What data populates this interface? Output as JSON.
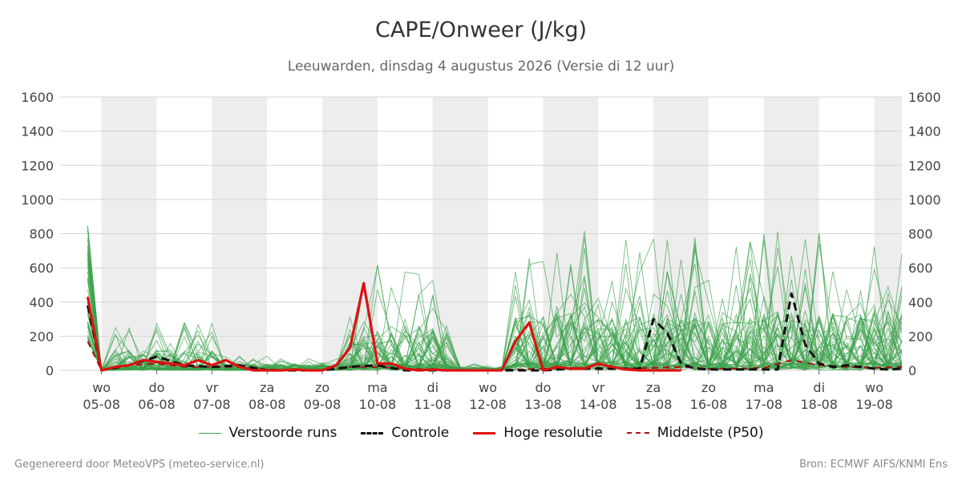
{
  "header": {
    "title": "CAPE/Onweer (J/kg)",
    "subtitle": "Leeuwarden, dinsdag  4 augustus 2026 (Versie di 12 uur)"
  },
  "footer": {
    "left": "Gegenereerd door MeteoVPS (meteo-service.nl)",
    "right": "Bron: ECMWF AIFS/KNMI Ens"
  },
  "legend": [
    {
      "label": "Verstoorde runs",
      "color": "#3aa14a",
      "style": "solid-thin"
    },
    {
      "label": "Controle",
      "color": "#111111",
      "style": "dashed"
    },
    {
      "label": "Hoge resolutie",
      "color": "#dd1111",
      "style": "solid-thick"
    },
    {
      "label": "Middelste (P50)",
      "color": "#aa1111",
      "style": "dashed-thin"
    }
  ],
  "chart_data": {
    "type": "line",
    "title": "CAPE/Onweer (J/kg)",
    "subtitle": "Leeuwarden, dinsdag  4 augustus 2026 (Versie di 12 uur)",
    "ylim": [
      0,
      1600
    ],
    "y_ticks": [
      0,
      200,
      400,
      600,
      800,
      1000,
      1200,
      1400,
      1600
    ],
    "x_range_days": [
      -0.75,
      14.5
    ],
    "x_ticks": [
      {
        "day": "wo",
        "date": "05-08"
      },
      {
        "day": "do",
        "date": "06-08"
      },
      {
        "day": "vr",
        "date": "07-08"
      },
      {
        "day": "za",
        "date": "08-08"
      },
      {
        "day": "zo",
        "date": "09-08"
      },
      {
        "day": "ma",
        "date": "10-08"
      },
      {
        "day": "di",
        "date": "11-08"
      },
      {
        "day": "wo",
        "date": "12-08"
      },
      {
        "day": "do",
        "date": "13-08"
      },
      {
        "day": "vr",
        "date": "14-08"
      },
      {
        "day": "za",
        "date": "15-08"
      },
      {
        "day": "zo",
        "date": "16-08"
      },
      {
        "day": "ma",
        "date": "17-08"
      },
      {
        "day": "di",
        "date": "18-08"
      },
      {
        "day": "wo",
        "date": "19-08"
      }
    ],
    "shaded_bands_days": [
      [
        0,
        1
      ],
      [
        2,
        3
      ],
      [
        4,
        5
      ],
      [
        6,
        7
      ],
      [
        8,
        9
      ],
      [
        10,
        11
      ],
      [
        12,
        13
      ],
      [
        14,
        14.5
      ]
    ],
    "grid": true,
    "legend_position": "bottom",
    "series": [
      {
        "name": "Hoge resolutie",
        "color": "#dd1111",
        "x": [
          -0.25,
          0,
          0.25,
          0.5,
          0.75,
          1,
          1.25,
          1.5,
          1.75,
          2,
          2.25,
          2.5,
          2.75,
          3,
          3.25,
          3.5,
          3.75,
          4,
          4.25,
          4.5,
          4.75,
          5,
          5.25,
          5.5,
          5.75,
          6,
          6.25,
          6.5,
          6.75,
          7,
          7.25,
          7.5,
          7.75,
          8,
          8.25,
          8.5,
          8.75,
          9,
          9.25,
          9.5,
          9.75,
          10,
          10.25,
          10.5
        ],
        "values": [
          430,
          0,
          20,
          30,
          60,
          50,
          40,
          30,
          60,
          30,
          60,
          20,
          0,
          0,
          0,
          5,
          0,
          0,
          30,
          130,
          510,
          40,
          40,
          10,
          0,
          5,
          0,
          0,
          0,
          0,
          0,
          170,
          280,
          0,
          20,
          10,
          10,
          40,
          20,
          5,
          0,
          0,
          0,
          0
        ]
      },
      {
        "name": "Controle",
        "color": "#111111",
        "x": [
          -0.25,
          0,
          0.5,
          1,
          1.5,
          2,
          2.5,
          3,
          3.5,
          4,
          4.5,
          5,
          5.5,
          6,
          6.5,
          7,
          7.5,
          8,
          8.5,
          9,
          9.5,
          9.75,
          10,
          10.25,
          10.5,
          10.75,
          11,
          11.5,
          12,
          12.25,
          12.5,
          12.75,
          13,
          13.25,
          13.5,
          14,
          14.25,
          14.5
        ],
        "values": [
          380,
          0,
          30,
          80,
          30,
          20,
          30,
          0,
          0,
          0,
          20,
          30,
          0,
          0,
          0,
          0,
          0,
          0,
          10,
          10,
          10,
          10,
          300,
          220,
          40,
          10,
          5,
          5,
          5,
          5,
          450,
          150,
          40,
          20,
          30,
          10,
          5,
          10
        ]
      },
      {
        "name": "Middelste (P50)",
        "color": "#aa1111",
        "x": [
          -0.25,
          0,
          0.5,
          1,
          1.5,
          2,
          2.5,
          3,
          3.5,
          4,
          4.5,
          5,
          5.5,
          6,
          6.5,
          7,
          7.5,
          8,
          8.5,
          9,
          9.5,
          10,
          10.5,
          11,
          11.5,
          12,
          12.5,
          13,
          13.5,
          14,
          14.5
        ],
        "values": [
          170,
          0,
          30,
          40,
          20,
          20,
          20,
          5,
          0,
          0,
          20,
          20,
          10,
          5,
          0,
          0,
          5,
          10,
          15,
          15,
          10,
          15,
          20,
          10,
          10,
          15,
          60,
          30,
          20,
          15,
          20
        ]
      }
    ]
  }
}
